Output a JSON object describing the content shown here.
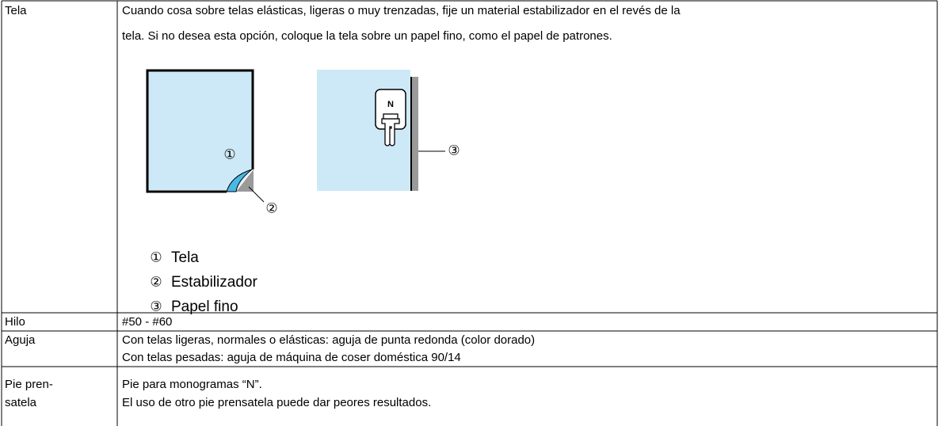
{
  "table": {
    "rows": [
      {
        "label": [
          "Tela"
        ],
        "content": [
          "Cuando cosa sobre telas elásticas, ligeras o muy trenzadas, fije un material estabilizador en el revés de la",
          "tela. Si no desea esta opción, coloque la tela sobre un papel fino, como el papel de patrones."
        ],
        "figure": {
          "callouts": [
            "①",
            "②",
            "③"
          ],
          "foot_letter": "N",
          "legend": [
            {
              "marker": "①",
              "label": "Tela"
            },
            {
              "marker": "②",
              "label": "Estabilizador"
            },
            {
              "marker": "③",
              "label": "Papel fino"
            }
          ]
        }
      },
      {
        "label": [
          "Hilo"
        ],
        "content": [
          "#50 - #60"
        ]
      },
      {
        "label": [
          "Aguja"
        ],
        "content": [
          "Con telas ligeras, normales o elásticas: aguja de punta redonda (color dorado)",
          "Con telas pesadas: aguja de máquina de coser doméstica 90/14"
        ]
      },
      {
        "label": [
          "Pie pren-",
          "satela"
        ],
        "content": [
          "Pie para monogramas “N”.",
          "El uso de otro pie prensatela puede dar peores resultados."
        ]
      }
    ]
  }
}
